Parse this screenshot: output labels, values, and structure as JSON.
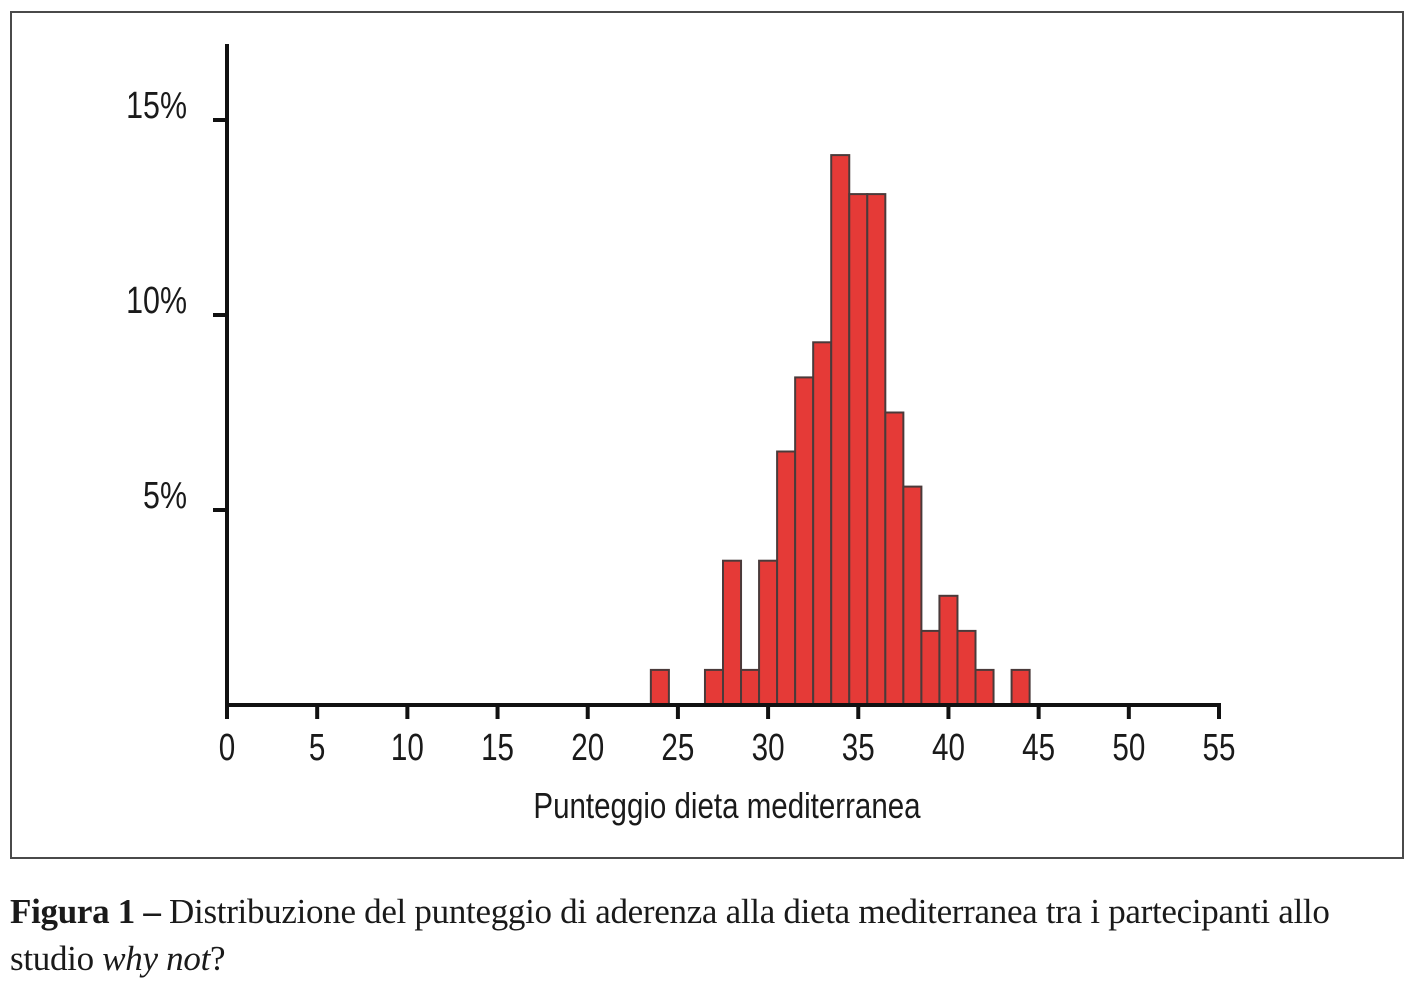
{
  "figure": {
    "caption_label": "Figura 1 –",
    "caption_text": " Distribuzione del punteggio di aderenza alla dieta mediterranea tra i partecipanti allo studio ",
    "caption_study": "why not",
    "caption_end": "?"
  },
  "colors": {
    "bar_fill": "#e53a37",
    "bar_stroke": "#4a3a3a",
    "axis": "#111111",
    "frame": "#4a4a4a"
  },
  "chart_data": {
    "type": "bar",
    "subtype": "histogram",
    "title": "",
    "xlabel": "Punteggio dieta mediterranea",
    "ylabel": "",
    "xlim": [
      0,
      55
    ],
    "ylim": [
      0,
      17
    ],
    "x_ticks": [
      0,
      5,
      10,
      15,
      20,
      25,
      30,
      35,
      40,
      45,
      50,
      55
    ],
    "x_tick_labels": [
      "0",
      "5",
      "10",
      "15",
      "20",
      "25",
      "30",
      "35",
      "40",
      "45",
      "50",
      "55"
    ],
    "y_ticks": [
      5,
      10,
      15
    ],
    "y_tick_labels": [
      "5%",
      "10%",
      "15%"
    ],
    "grid": false,
    "legend": null,
    "bin_width": 1,
    "categories": [
      24,
      27,
      28,
      29,
      30,
      31,
      32,
      33,
      34,
      35,
      36,
      37,
      38,
      39,
      40,
      41,
      42,
      44
    ],
    "values": [
      0.9,
      0.9,
      3.7,
      0.9,
      3.7,
      6.5,
      8.4,
      9.3,
      14.1,
      13.1,
      13.1,
      7.5,
      5.6,
      1.9,
      2.8,
      1.9,
      0.9,
      0.9
    ],
    "unit": "%"
  }
}
